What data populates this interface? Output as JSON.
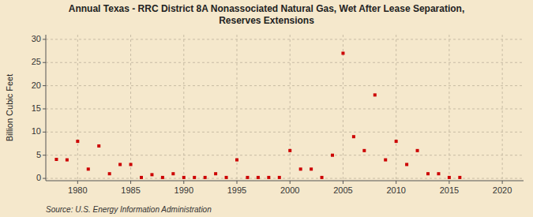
{
  "chart_data": {
    "type": "scatter",
    "title": "Annual Texas - RRC District 8A Nonassociated Natural Gas, Wet After Lease Separation,\nReserves Extensions",
    "ylabel": "Billion Cubic Feet",
    "annotations": [
      "Source: U.S. Energy Information Administration"
    ],
    "x": [
      1978,
      1979,
      1980,
      1981,
      1982,
      1983,
      1984,
      1985,
      1986,
      1987,
      1988,
      1989,
      1990,
      1991,
      1992,
      1993,
      1994,
      1995,
      1996,
      1997,
      1998,
      1999,
      2000,
      2001,
      2002,
      2003,
      2004,
      2005,
      2006,
      2007,
      2008,
      2009,
      2010,
      2011,
      2012,
      2013,
      2014,
      2015,
      2016
    ],
    "values": [
      4.1,
      4.0,
      8.0,
      2.0,
      7.0,
      1.0,
      3.0,
      3.0,
      0.2,
      0.8,
      0.2,
      1.0,
      0.2,
      0.2,
      0.2,
      1.0,
      0.2,
      4.0,
      0.2,
      0.2,
      0.2,
      0.2,
      6.0,
      2.0,
      2.0,
      0.2,
      5.0,
      27.0,
      9.0,
      6.0,
      18.0,
      4.0,
      8.0,
      3.0,
      6.0,
      1.0,
      1.0,
      0.2,
      0.2
    ],
    "color": "#cc0000",
    "marker": "square",
    "xlim": [
      1977,
      2022
    ],
    "ylim": [
      -0.5,
      31
    ],
    "xticks": [
      1980,
      1985,
      1990,
      1995,
      2000,
      2005,
      2010,
      2015,
      2020
    ],
    "yticks": [
      0,
      5,
      10,
      15,
      20,
      25,
      30
    ],
    "grid": true
  }
}
